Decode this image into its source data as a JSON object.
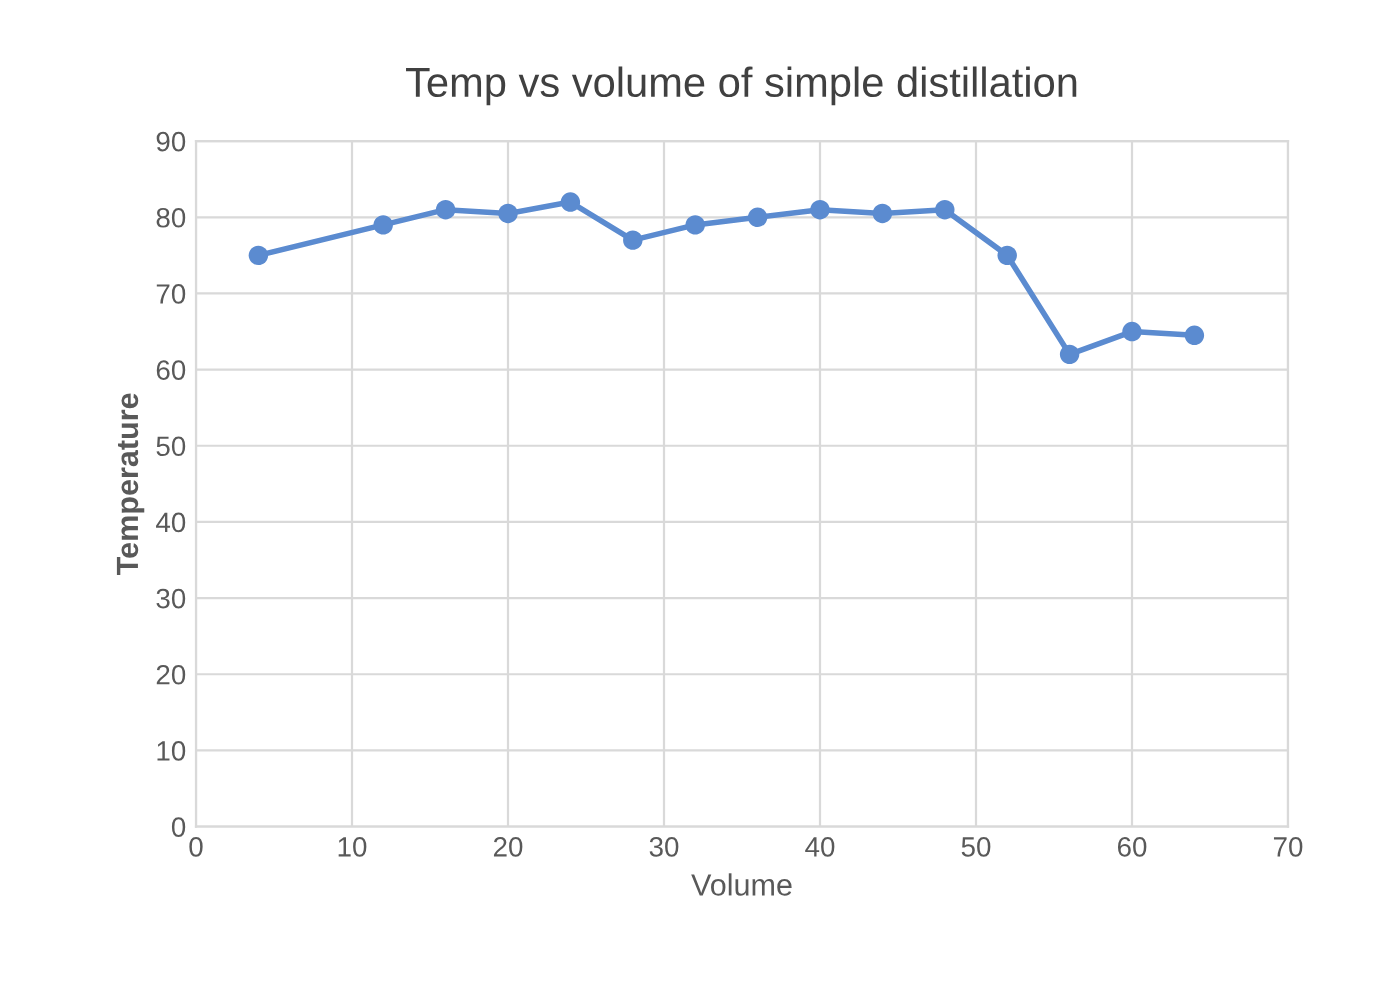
{
  "chart_data": {
    "type": "line",
    "title": "Temp vs volume of simple distillation",
    "xlabel": "Volume",
    "ylabel": "Temperature",
    "x": [
      4,
      12,
      16,
      20,
      24,
      28,
      32,
      36,
      40,
      44,
      48,
      52,
      56,
      60,
      64
    ],
    "series": [
      {
        "color": "#5b8bd0",
        "values": [
          75,
          79,
          81,
          80.5,
          82,
          77,
          79,
          80,
          81,
          80.5,
          81,
          75,
          62,
          65,
          64.5
        ]
      }
    ],
    "xlim": [
      0,
      70
    ],
    "xticks": [
      0,
      10,
      20,
      30,
      40,
      50,
      60,
      70
    ],
    "ylim": [
      0,
      90
    ],
    "yticks": [
      0,
      10,
      20,
      30,
      40,
      50,
      60,
      70,
      80,
      90
    ],
    "grid": true,
    "marker": "circle",
    "line_style": "solid"
  }
}
